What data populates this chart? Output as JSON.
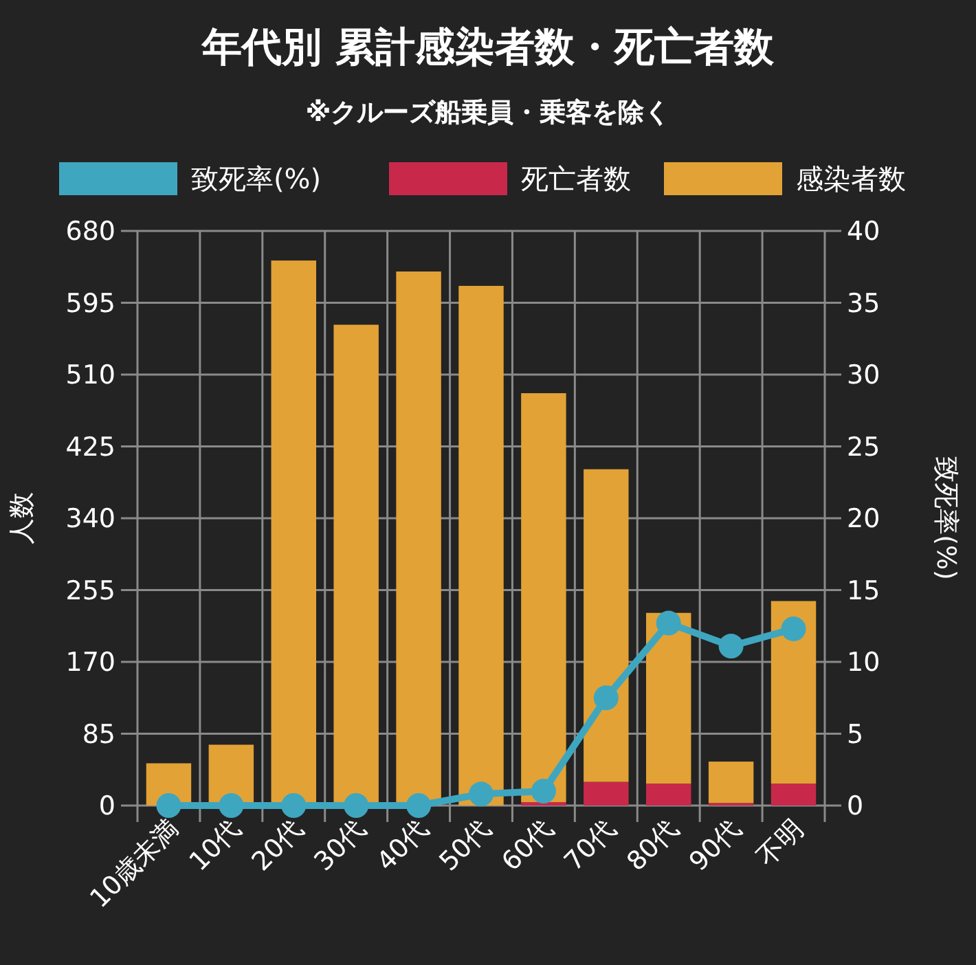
{
  "chart_data": {
    "type": "bar",
    "title": "年代別 累計感染者数・死亡者数",
    "subtitle": "※クルーズ船乗員・乗客を除く",
    "ylabel": "人数",
    "y2label": "致死率(%)",
    "categories": [
      "10歳未満",
      "10代",
      "20代",
      "30代",
      "40代",
      "50代",
      "60代",
      "70代",
      "80代",
      "90代",
      "不明"
    ],
    "stacked": true,
    "grid": true,
    "legend": "top",
    "marker": "circle",
    "ylim": [
      0,
      680
    ],
    "yticks": [
      0,
      85,
      170,
      255,
      340,
      425,
      510,
      595,
      680
    ],
    "y2lim": [
      0,
      40
    ],
    "y2ticks": [
      0,
      5,
      10,
      15,
      20,
      25,
      30,
      35,
      40
    ],
    "series": [
      {
        "name": "致死率(%)",
        "type": "line",
        "axis": "y2",
        "color": "#3fa6c0",
        "values": [
          0,
          0,
          0,
          0,
          0,
          0.8,
          1.0,
          7.5,
          12.7,
          11.1,
          12.3
        ]
      },
      {
        "name": "死亡者数",
        "color": "#c8294b",
        "values": [
          0,
          0,
          0,
          0,
          0,
          null,
          4,
          28,
          26,
          3,
          26
        ]
      },
      {
        "name": "感染者数",
        "color": "#e2a236",
        "values": [
          50,
          72,
          645,
          569,
          632,
          615,
          484,
          370,
          202,
          49,
          216
        ]
      }
    ]
  }
}
